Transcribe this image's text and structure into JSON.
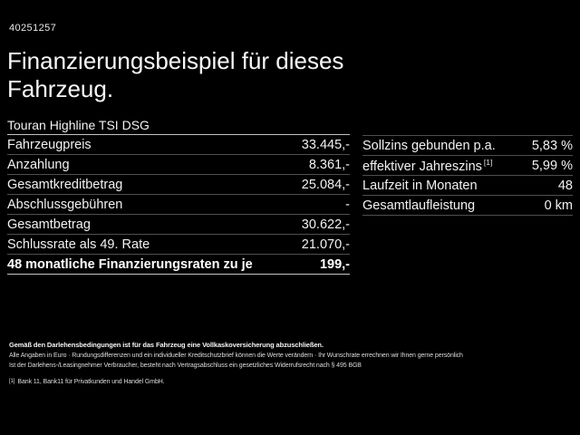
{
  "page": {
    "id_number": "40251257",
    "title": "Finanzierungsbeispiel für dieses Fahrzeug.",
    "subtitle": "Touran Highline TSI DSG"
  },
  "left_table": {
    "rows": [
      {
        "label": "Fahrzeugpreis",
        "value": "33.445,-"
      },
      {
        "label": "Anzahlung",
        "value": "8.361,-"
      },
      {
        "label": "Gesamtkreditbetrag",
        "value": "25.084,-"
      },
      {
        "label": "Abschlussgebühren",
        "value": "-"
      },
      {
        "label": "Gesamtbetrag",
        "value": "30.622,-"
      },
      {
        "label": "Schlussrate als 49. Rate",
        "value": "21.070,-"
      },
      {
        "label": "48 monatliche Finanzierungsraten zu je",
        "value": "199,-"
      }
    ]
  },
  "right_table": {
    "rows": [
      {
        "label": "Sollzins gebunden p.a.",
        "value": "5,83 %"
      },
      {
        "label": "effektiver Jahreszins",
        "sup": "[1]",
        "value": "5,99 %"
      },
      {
        "label": "Laufzeit in Monaten",
        "value": "48"
      },
      {
        "label": "Gesamtlaufleistung",
        "value": "0 km"
      }
    ]
  },
  "footer": {
    "line1": "Gemäß den Darlehensbedingungen ist für das Fahrzeug eine Vollkaskoversicherung abzuschließen.",
    "line2": "Alle Angaben in Euro · Rundungsdifferenzen und ein individueller Kreditschutzbrief können die Werte verändern · Ihr Wunschrate errechnen wir Ihnen gerne persönlich",
    "line3": "Ist der Darlehens-/Leasingnehmer Verbraucher, besteht nach Vertragsabschluss ein gesetzliches Widerrufsrecht nach § 495 BGB",
    "footnote_marker": "[1]",
    "footnote_text": "Bank 11, Bank11 für Privatkunden und Handel GmbH."
  },
  "colors": {
    "background": "#000000",
    "text": "#f2f2f2",
    "separator": "#4f4f4f",
    "bright_rule": "#c3c3c3"
  }
}
